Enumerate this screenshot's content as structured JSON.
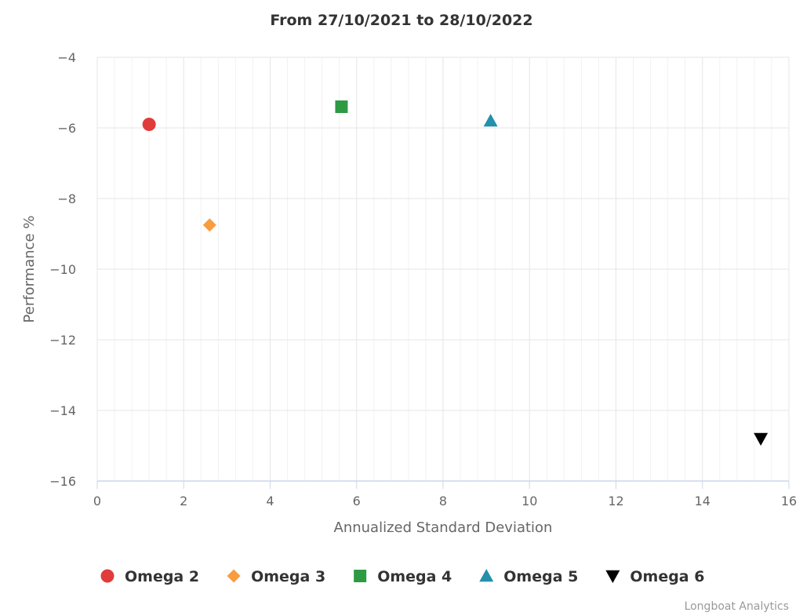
{
  "chart_data": {
    "type": "scatter",
    "title": "From 27/10/2021 to 28/10/2022",
    "xlabel": "Annualized Standard Deviation",
    "ylabel": "Performance %",
    "xlim": [
      0,
      16
    ],
    "ylim": [
      -16,
      -4
    ],
    "x_ticks": [
      0,
      2,
      4,
      6,
      8,
      10,
      12,
      14,
      16
    ],
    "y_ticks": [
      -4,
      -6,
      -8,
      -10,
      -12,
      -14,
      -16
    ],
    "x_tick_labels": [
      "0",
      "2",
      "4",
      "6",
      "8",
      "10",
      "12",
      "14",
      "16"
    ],
    "y_tick_labels": [
      "−4",
      "−6",
      "−8",
      "−10",
      "−12",
      "−14",
      "−16"
    ],
    "grid": true,
    "legend_position": "bottom",
    "series": [
      {
        "name": "Omega 2",
        "marker": "circle",
        "color": "#e03c3c",
        "x": 1.2,
        "y": -5.9
      },
      {
        "name": "Omega 3",
        "marker": "diamond",
        "color": "#f99c3f",
        "x": 2.6,
        "y": -8.75
      },
      {
        "name": "Omega 4",
        "marker": "square",
        "color": "#2e9a44",
        "x": 5.65,
        "y": -5.4
      },
      {
        "name": "Omega 5",
        "marker": "triangle",
        "color": "#2490ab",
        "x": 9.1,
        "y": -5.8
      },
      {
        "name": "Omega 6",
        "marker": "triangle-down",
        "color": "#000000",
        "x": 15.35,
        "y": -14.8
      }
    ]
  },
  "credits": "Longboat Analytics",
  "colors": {
    "grid": "#e6e6e6",
    "axis": "#ccd6eb"
  }
}
